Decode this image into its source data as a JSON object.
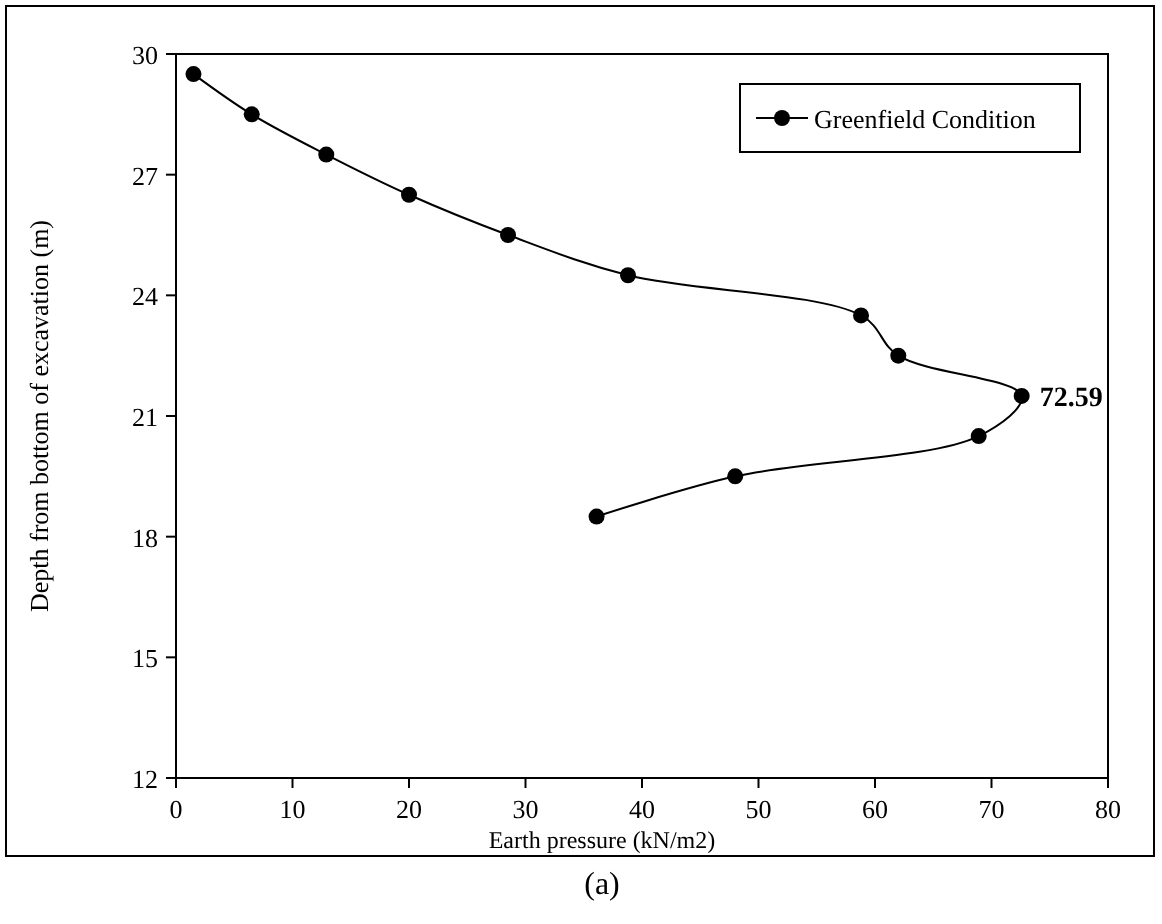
{
  "chart_data": {
    "type": "line",
    "xlabel": "Earth pressure (kN/m2)",
    "ylabel": "Depth from bottom of excavation (m)",
    "series": [
      {
        "name": "Greenfield Condition",
        "color": "#000000",
        "x": [
          1.5,
          6.5,
          12.9,
          20,
          28.5,
          38.8,
          58.8,
          62,
          72.59,
          68.9,
          48,
          36.1
        ],
        "values": [
          29.5,
          28.5,
          27.5,
          26.5,
          25.5,
          24.5,
          23.5,
          22.5,
          21.5,
          20.5,
          19.5,
          18.5
        ]
      }
    ],
    "xlim": [
      0,
      80
    ],
    "xticks": [
      0,
      10,
      20,
      30,
      40,
      50,
      60,
      70,
      80
    ],
    "ylim": [
      12,
      30
    ],
    "yticks": [
      12,
      15,
      18,
      21,
      24,
      27,
      30
    ],
    "grid": false,
    "legend": "top right",
    "marker": "circle",
    "line_style": "solid",
    "annotations": [
      {
        "text": "72.59",
        "x": 72.59,
        "y": 21.5
      },
      "(a)"
    ]
  }
}
